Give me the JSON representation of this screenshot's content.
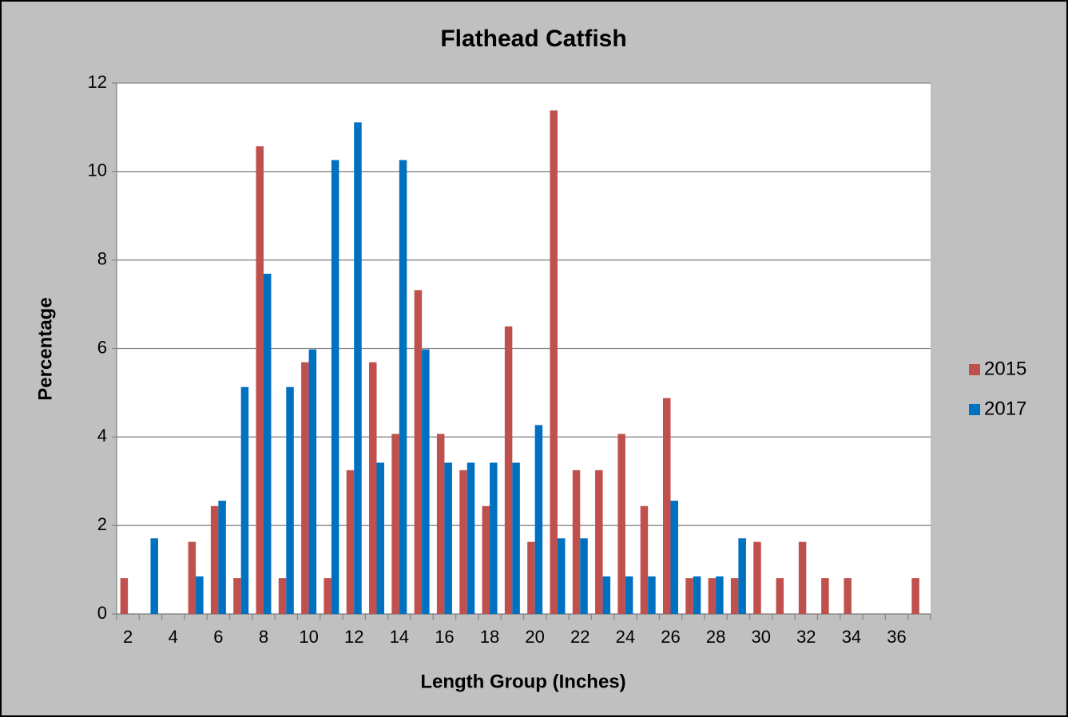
{
  "chart_data": {
    "type": "bar",
    "title": "Flathead Catfish",
    "x_label": "Length Group (Inches)",
    "y_label": "Percentage",
    "categories": [
      "2",
      null,
      "4",
      null,
      "6",
      null,
      "8",
      null,
      "10",
      null,
      "12",
      null,
      "14",
      null,
      "16",
      null,
      "18",
      null,
      "20",
      null,
      "22",
      null,
      "24",
      null,
      "26",
      null,
      "28",
      null,
      "30",
      null,
      "32",
      null,
      "34",
      null,
      "36",
      null
    ],
    "series": [
      {
        "name": "2015",
        "color": "#c0504d",
        "values": [
          0.81,
          0,
          0,
          1.63,
          2.44,
          0.81,
          10.57,
          0.81,
          5.69,
          0.81,
          3.25,
          5.69,
          4.07,
          7.32,
          4.07,
          3.25,
          2.44,
          6.5,
          1.63,
          11.38,
          3.25,
          3.25,
          4.07,
          2.44,
          4.88,
          0.81,
          0.81,
          0.81,
          1.63,
          0.81,
          1.63,
          0.81,
          0.81,
          0,
          0,
          0.81
        ]
      },
      {
        "name": "2017",
        "color": "#0070c0",
        "values": [
          0,
          1.71,
          0,
          0.85,
          2.56,
          5.13,
          7.69,
          5.13,
          5.98,
          10.26,
          11.11,
          3.42,
          10.26,
          5.98,
          3.42,
          3.42,
          3.42,
          3.42,
          4.27,
          1.71,
          1.71,
          0.85,
          0.85,
          0.85,
          2.56,
          0.85,
          0.85,
          1.71,
          0,
          0,
          0,
          0,
          0,
          0,
          0,
          0
        ]
      }
    ],
    "ylim": [
      0,
      12
    ],
    "yticks": [
      0,
      2,
      4,
      6,
      8,
      10,
      12
    ],
    "grid": true,
    "legend": "right"
  }
}
